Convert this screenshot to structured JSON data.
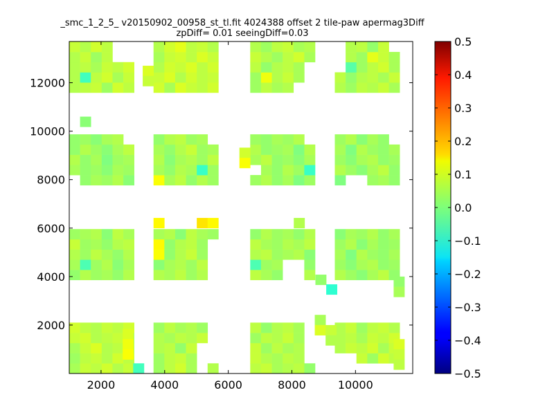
{
  "chart_data": {
    "type": "heatmap",
    "title": "_smc_1_2_5_ v20150902_00958_st_tl.fit 4024388 offset 2 tile-paw apermag3Diff",
    "subtitle": "zpDiff= 0.01 seeingDiff=0.03",
    "xlabel": "",
    "ylabel": "",
    "xlim": [
      1000,
      11800
    ],
    "ylim": [
      0,
      13700
    ],
    "xticks": [
      "2000",
      "4000",
      "6000",
      "8000",
      "10000"
    ],
    "yticks": [
      "2000",
      "4000",
      "6000",
      "8000",
      "10000",
      "12000"
    ],
    "colorbar": {
      "range": [
        -0.5,
        0.5
      ],
      "ticks": [
        "0.5",
        "0.4",
        "0.3",
        "0.2",
        "0.1",
        "0.0",
        "−0.1",
        "−0.2",
        "−0.3",
        "−0.4",
        "−0.5"
      ],
      "colormap": "jet"
    },
    "cell_size": [
      340,
      420
    ],
    "columns_x0": [
      1000,
      3650,
      6690,
      9350
    ],
    "rows_y0": [
      0,
      3860,
      7770,
      11590
    ],
    "cols_per_block": 6,
    "rows_per_block": 5,
    "missing_cells": [
      [
        1,
        0,
        5,
        1
      ],
      [
        1,
        0,
        5,
        2
      ],
      [
        1,
        0,
        5,
        3
      ],
      [
        1,
        0,
        5,
        4
      ],
      [
        1,
        0,
        4,
        0
      ],
      [
        1,
        0,
        4,
        1
      ],
      [
        1,
        0,
        4,
        2
      ],
      [
        2,
        0,
        5,
        1
      ],
      [
        2,
        0,
        5,
        2
      ],
      [
        2,
        0,
        5,
        3
      ],
      [
        2,
        0,
        5,
        4
      ],
      [
        3,
        0,
        0,
        0
      ],
      [
        3,
        0,
        1,
        0
      ],
      [
        3,
        0,
        2,
        0
      ],
      [
        3,
        0,
        3,
        0
      ],
      [
        3,
        0,
        4,
        0
      ],
      [
        3,
        0,
        5,
        0
      ],
      [
        3,
        0,
        0,
        1
      ],
      [
        3,
        0,
        1,
        1
      ],
      [
        1,
        1,
        5,
        0
      ],
      [
        1,
        1,
        5,
        1
      ],
      [
        1,
        1,
        5,
        2
      ],
      [
        1,
        1,
        5,
        3
      ],
      [
        2,
        1,
        3,
        0
      ],
      [
        2,
        1,
        4,
        0
      ],
      [
        2,
        1,
        3,
        1
      ],
      [
        2,
        1,
        4,
        1
      ],
      [
        0,
        2,
        0,
        0
      ],
      [
        0,
        2,
        5,
        4
      ],
      [
        1,
        2,
        5,
        4
      ],
      [
        2,
        2,
        0,
        1
      ],
      [
        2,
        2,
        5,
        4
      ],
      [
        3,
        2,
        1,
        0
      ],
      [
        3,
        2,
        2,
        0
      ],
      [
        3,
        2,
        5,
        4
      ],
      [
        0,
        3,
        4,
        4
      ],
      [
        0,
        3,
        5,
        4
      ],
      [
        0,
        3,
        4,
        3
      ],
      [
        0,
        3,
        5,
        3
      ],
      [
        2,
        3,
        4,
        0
      ],
      [
        2,
        3,
        5,
        0
      ],
      [
        2,
        3,
        5,
        1
      ],
      [
        2,
        3,
        5,
        2
      ],
      [
        3,
        3,
        0,
        2
      ],
      [
        3,
        3,
        0,
        3
      ],
      [
        3,
        3,
        0,
        4
      ],
      [
        3,
        3,
        5,
        4
      ]
    ],
    "extra_cells": [
      [
        3650,
        6000,
        0.13
      ],
      [
        5010,
        6000,
        0.15
      ],
      [
        5350,
        6000,
        0.13
      ],
      [
        8060,
        6000,
        0.05
      ],
      [
        3310,
        12280,
        0.09
      ],
      [
        3310,
        11860,
        0.07
      ],
      [
        6350,
        8900,
        0.08
      ],
      [
        6350,
        8480,
        0.12
      ],
      [
        1340,
        10180,
        0.01
      ],
      [
        2680,
        1420,
        0.09
      ],
      [
        2680,
        1000,
        0.11
      ],
      [
        2680,
        580,
        0.12
      ],
      [
        3010,
        0,
        -0.06
      ],
      [
        8740,
        3660,
        0.02
      ],
      [
        9080,
        3260,
        -0.08
      ],
      [
        8720,
        2000,
        0.04
      ],
      [
        8720,
        1580,
        0.09
      ],
      [
        9060,
        1580,
        0.07
      ],
      [
        9060,
        1160,
        0.05
      ],
      [
        11200,
        3580,
        0.02
      ],
      [
        11200,
        3160,
        0.04
      ],
      [
        11200,
        1000,
        0.09
      ],
      [
        11200,
        580,
        0.07
      ],
      [
        11200,
        160,
        0.06
      ]
    ],
    "values": [
      [
        [
          0.07,
          0.06,
          0.05,
          0.07,
          0.04,
          0.09
        ],
        [
          0.05,
          0.08,
          0.06,
          0.06,
          0.05,
          0.11
        ],
        [
          0.07,
          0.05,
          0.06,
          0.04,
          0.07,
          0.13
        ],
        [
          0.05,
          0.06,
          0.08,
          0.06,
          0.05,
          0.09
        ],
        [
          0.06,
          0.05,
          0.04,
          0.06,
          0.07,
          0.08
        ]
      ],
      [
        [
          0.05,
          0.07,
          0.04,
          0.06,
          0.05,
          0.02
        ],
        [
          0.06,
          0.05,
          0.07,
          0.05,
          0.04,
          0.04
        ],
        [
          0.04,
          0.06,
          0.05,
          0.07,
          0.06,
          0.03
        ],
        [
          0.05,
          0.04,
          0.06,
          0.05,
          0.04,
          0.05
        ],
        [
          0.07,
          0.05,
          0.05,
          0.06,
          0.04,
          0.03
        ]
      ],
      [
        [
          0.09,
          0.06,
          0.08,
          0.07,
          0.05,
          0.02
        ],
        [
          0.06,
          0.08,
          0.06,
          0.09,
          0.06,
          0.03
        ],
        [
          0.05,
          0.07,
          0.06,
          0.05,
          0.07,
          0.02
        ],
        [
          0.07,
          0.05,
          0.08,
          0.06,
          0.05,
          0.04
        ],
        [
          0.06,
          0.07,
          0.04,
          0.06,
          0.07,
          0.03
        ]
      ],
      [
        [
          0.05,
          0.08,
          0.06,
          0.07,
          0.06,
          0.05
        ],
        [
          0.06,
          0.05,
          0.09,
          0.05,
          0.05,
          0.05
        ],
        [
          0.04,
          0.06,
          0.05,
          0.07,
          0.06,
          0.05
        ],
        [
          0.05,
          0.04,
          0.06,
          0.05,
          0.06,
          0.05
        ],
        [
          0.06,
          0.07,
          0.05,
          0.06,
          0.05,
          0.05
        ]
      ]
    ],
    "block_values": [
      [
        0.06,
        0.05,
        0.05,
        0.06
      ],
      [
        0.04,
        0.04,
        0.04,
        0.03
      ],
      [
        0.03,
        0.04,
        0.03,
        0.03
      ],
      [
        0.06,
        0.07,
        0.05,
        0.05
      ]
    ],
    "value_noise": [
      -0.02,
      0.01,
      0.0,
      0.02,
      -0.01,
      0.01,
      -0.03,
      0.0,
      0.01,
      -0.01,
      0.02,
      0.0,
      -0.02,
      0.01,
      0.03,
      -0.01,
      0.0,
      -0.02,
      0.01,
      0.02,
      -0.01,
      0.0,
      0.01,
      -0.03,
      0.02,
      0.0,
      -0.01,
      0.01,
      0.0,
      0.02,
      -0.02,
      0.01,
      -0.01,
      0.0
    ],
    "special_cells": [
      [
        0,
        3,
        1,
        1,
        -0.06
      ],
      [
        1,
        2,
        4,
        1,
        -0.07
      ],
      [
        2,
        2,
        5,
        1,
        -0.07
      ],
      [
        2,
        1,
        0,
        1,
        -0.05
      ],
      [
        0,
        1,
        1,
        1,
        -0.05
      ],
      [
        1,
        1,
        0,
        3,
        0.13
      ],
      [
        1,
        1,
        0,
        2,
        0.12
      ],
      [
        1,
        2,
        0,
        0,
        0.12
      ],
      [
        2,
        3,
        1,
        1,
        0.11
      ],
      [
        3,
        3,
        3,
        3,
        0.1
      ],
      [
        3,
        3,
        1,
        2,
        -0.04
      ]
    ]
  }
}
